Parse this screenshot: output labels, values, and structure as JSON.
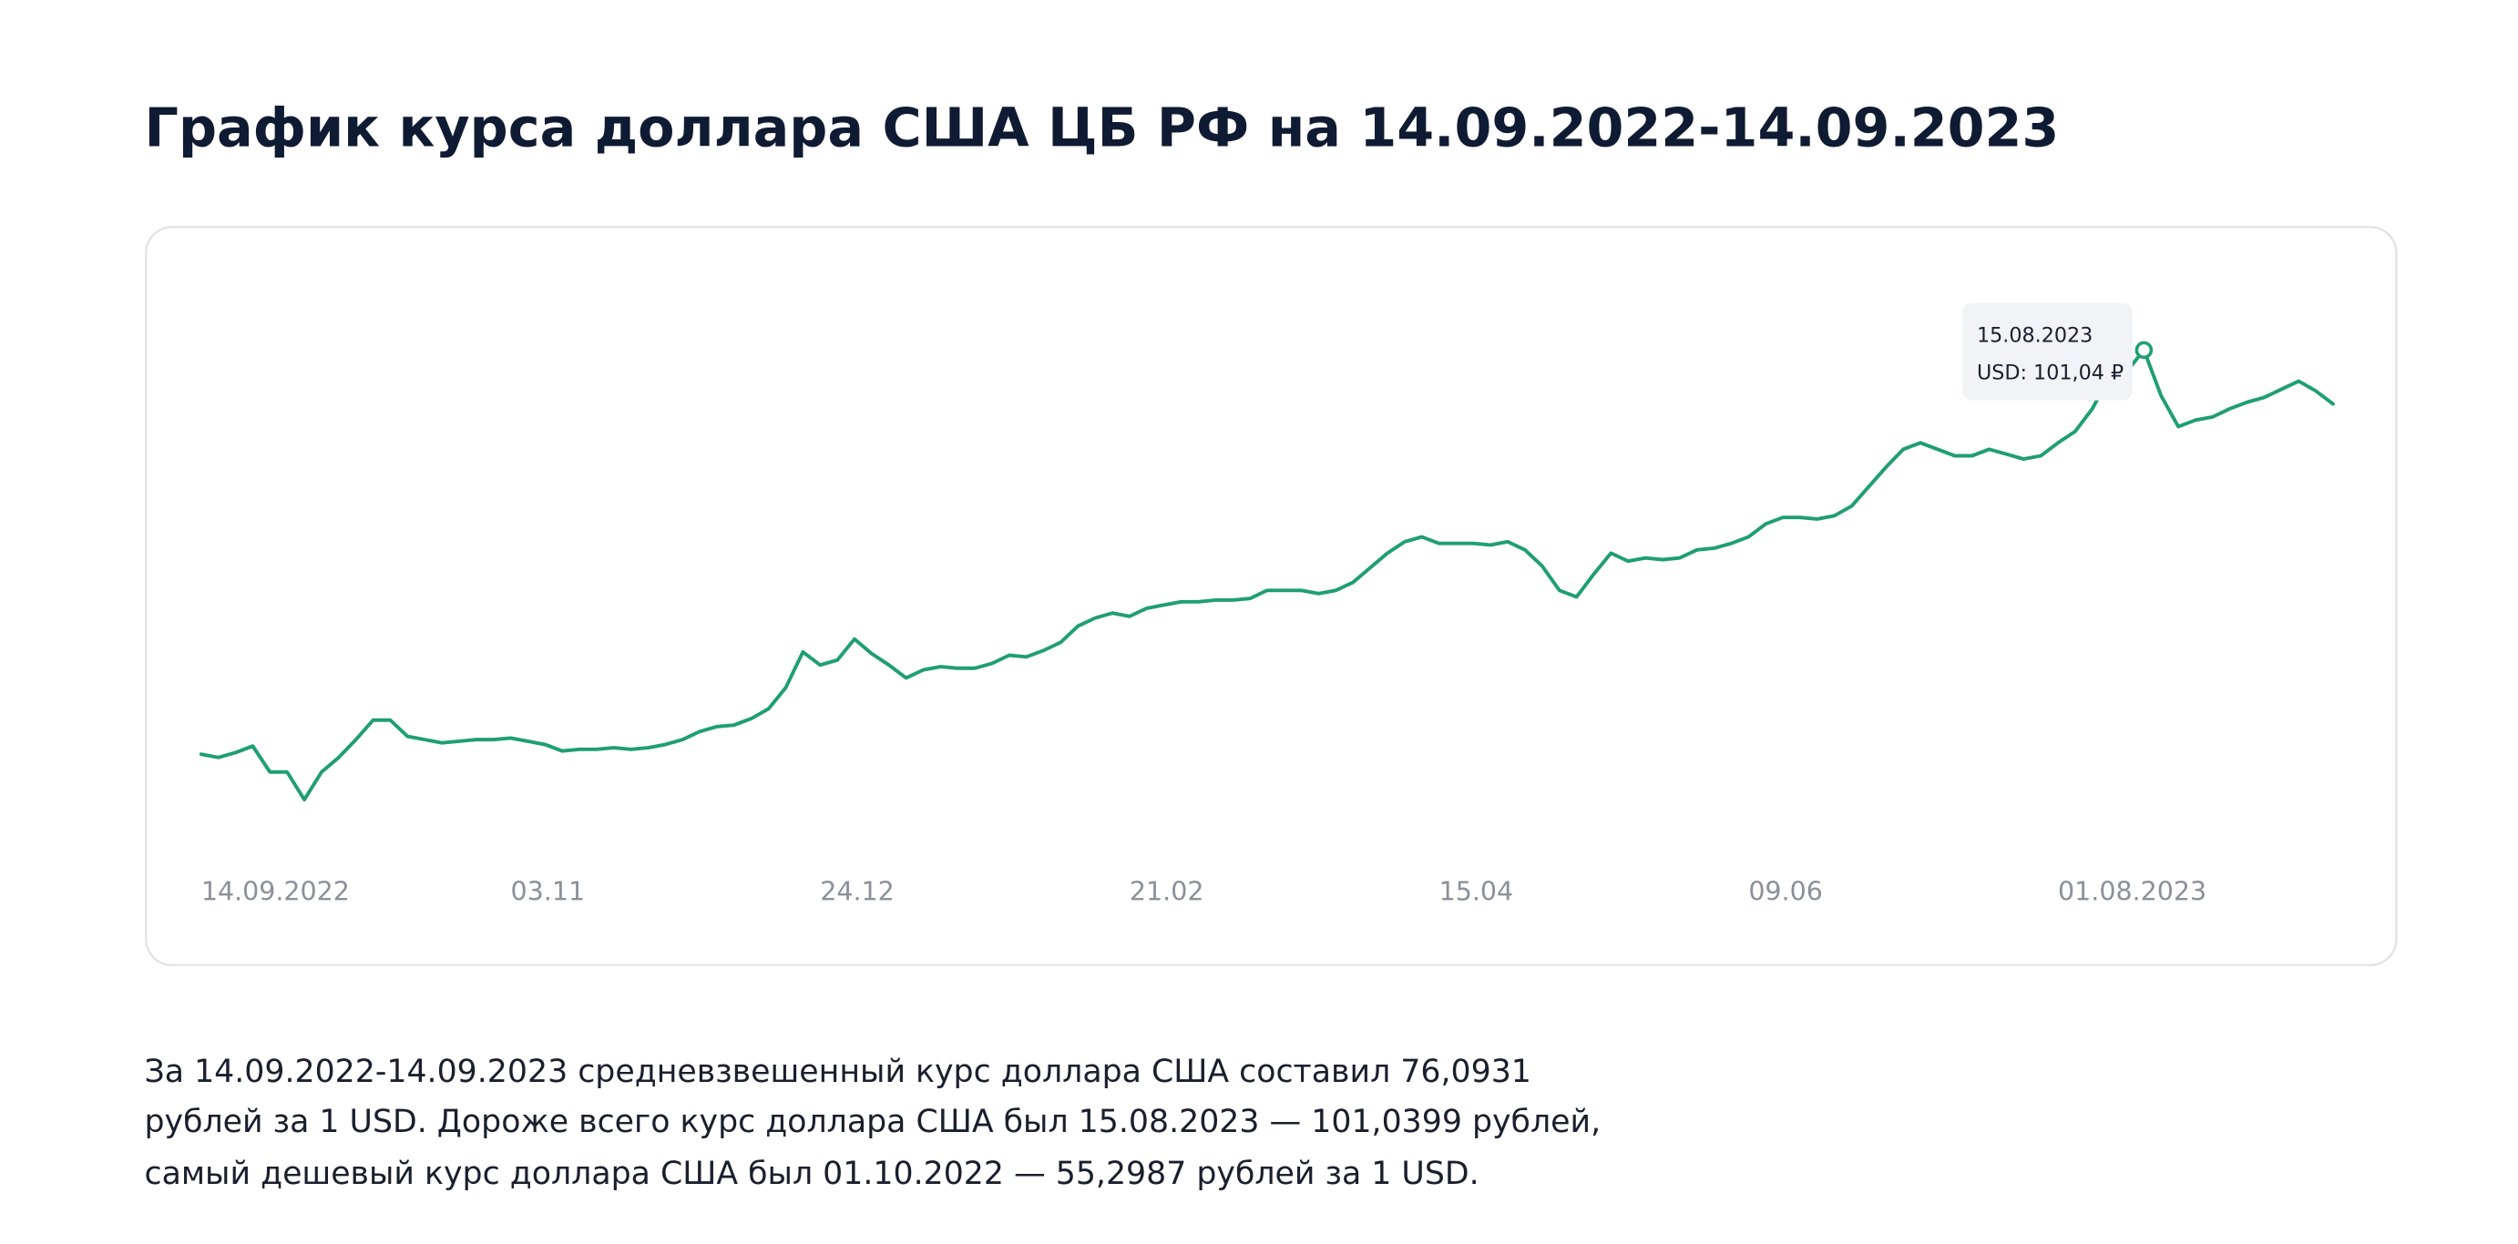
{
  "chart_data": {
    "type": "line",
    "title": "График курса доллара США ЦБ РФ на 14.09.2022-14.09.2023",
    "categories": [
      "14.09.2022",
      null,
      null,
      null,
      null,
      null,
      null,
      null,
      null,
      null,
      null,
      null,
      null,
      null,
      null,
      null,
      null,
      null,
      "03.11",
      null,
      null,
      null,
      null,
      null,
      null,
      null,
      null,
      null,
      null,
      null,
      null,
      null,
      null,
      null,
      null,
      null,
      "24.12",
      null,
      null,
      null,
      null,
      null,
      null,
      null,
      null,
      null,
      null,
      null,
      null,
      null,
      null,
      null,
      null,
      null,
      "21.02",
      null,
      null,
      null,
      null,
      null,
      null,
      null,
      null,
      null,
      null,
      null,
      null,
      null,
      null,
      null,
      null,
      null,
      "15.04",
      null,
      null,
      null,
      null,
      null,
      null,
      null,
      null,
      null,
      null,
      null,
      null,
      null,
      null,
      null,
      null,
      null,
      "09.06",
      null,
      null,
      null,
      null,
      null,
      null,
      null,
      null,
      null,
      null,
      null,
      null,
      null,
      null,
      null,
      null,
      null,
      "01.08.2023",
      null,
      null,
      null,
      null,
      null,
      null,
      null,
      null,
      null,
      null,
      null,
      null,
      null,
      null,
      null,
      null
    ],
    "values": [
      59.92,
      59.59,
      60.09,
      60.75,
      58.11,
      58.11,
      55.3,
      58.11,
      59.59,
      61.41,
      63.39,
      63.39,
      61.74,
      61.41,
      61.08,
      61.24,
      61.41,
      61.41,
      61.57,
      61.24,
      60.91,
      60.25,
      60.42,
      60.42,
      60.58,
      60.42,
      60.58,
      60.91,
      61.41,
      62.23,
      62.73,
      62.89,
      63.55,
      64.54,
      66.69,
      70.32,
      69.0,
      69.49,
      71.64,
      70.15,
      69.0,
      67.68,
      68.5,
      68.83,
      68.67,
      68.67,
      69.16,
      69.99,
      69.82,
      70.48,
      71.31,
      72.96,
      73.78,
      74.28,
      73.95,
      74.77,
      75.1,
      75.43,
      75.43,
      75.6,
      75.6,
      75.76,
      76.59,
      76.59,
      76.59,
      76.26,
      76.59,
      77.41,
      78.9,
      80.38,
      81.54,
      82.03,
      81.37,
      81.37,
      81.37,
      81.21,
      81.54,
      80.71,
      79.06,
      76.59,
      75.93,
      78.24,
      80.38,
      79.56,
      79.89,
      79.72,
      79.89,
      80.71,
      80.88,
      81.37,
      82.03,
      83.35,
      84.01,
      84.01,
      83.85,
      84.18,
      85.17,
      87.15,
      89.13,
      90.94,
      91.6,
      90.94,
      90.28,
      90.28,
      90.94,
      90.45,
      89.95,
      90.28,
      91.6,
      92.76,
      95.07,
      98.37,
      98.86,
      101.04,
      96.39,
      93.25,
      93.91,
      94.24,
      95.07,
      95.73,
      96.22,
      97.05,
      97.87,
      96.88,
      95.56
    ],
    "color": "#1f9e74",
    "ylim": [
      50.85,
      108.6
    ],
    "tooltip": {
      "date": "15.08.2023",
      "value": 101.04,
      "value_label": "USD: 101,04 ₽"
    }
  },
  "description": [
    "За 14.09.2022-14.09.2023 средневзвешенный курс доллара США составил 76,0931",
    "рублей за 1 USD. Дороже всего курс доллара США был 15.08.2023 — 101,0399 рублей,",
    "самый дешевый курс доллара США был 01.10.2022 — 55,2987 рублей за 1 USD."
  ]
}
